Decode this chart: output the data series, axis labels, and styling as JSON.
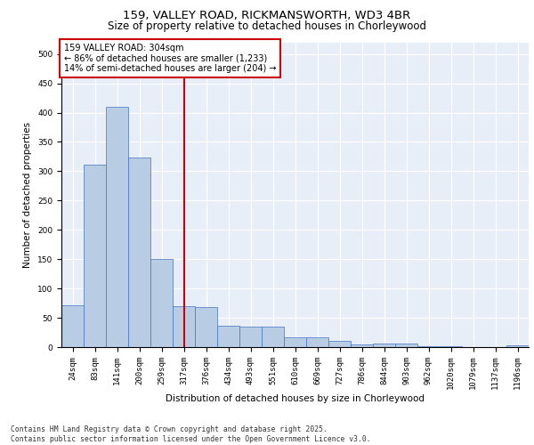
{
  "title_line1": "159, VALLEY ROAD, RICKMANSWORTH, WD3 4BR",
  "title_line2": "Size of property relative to detached houses in Chorleywood",
  "xlabel": "Distribution of detached houses by size in Chorleywood",
  "ylabel": "Number of detached properties",
  "bar_color": "#b8cce4",
  "bar_edge_color": "#4472c4",
  "background_color": "#e8eef7",
  "grid_color": "#ffffff",
  "vline_color": "#cc0000",
  "vline_x": 5.0,
  "annotation_text": "159 VALLEY ROAD: 304sqm\n← 86% of detached houses are smaller (1,233)\n14% of semi-detached houses are larger (204) →",
  "annotation_box_color": "#ffffff",
  "annotation_box_edge": "#cc0000",
  "categories": [
    "24sqm",
    "83sqm",
    "141sqm",
    "200sqm",
    "259sqm",
    "317sqm",
    "376sqm",
    "434sqm",
    "493sqm",
    "551sqm",
    "610sqm",
    "669sqm",
    "727sqm",
    "786sqm",
    "844sqm",
    "903sqm",
    "962sqm",
    "1020sqm",
    "1079sqm",
    "1137sqm",
    "1196sqm"
  ],
  "values": [
    71,
    312,
    410,
    323,
    150,
    70,
    68,
    36,
    35,
    35,
    17,
    16,
    10,
    5,
    6,
    6,
    2,
    1,
    0,
    0,
    3
  ],
  "ylim": [
    0,
    520
  ],
  "yticks": [
    0,
    50,
    100,
    150,
    200,
    250,
    300,
    350,
    400,
    450,
    500
  ],
  "footer_text": "Contains HM Land Registry data © Crown copyright and database right 2025.\nContains public sector information licensed under the Open Government Licence v3.0.",
  "title_fontsize": 9.5,
  "subtitle_fontsize": 8.5,
  "axis_label_fontsize": 7.5,
  "tick_fontsize": 6.5,
  "annotation_fontsize": 7.0,
  "footer_fontsize": 5.8
}
